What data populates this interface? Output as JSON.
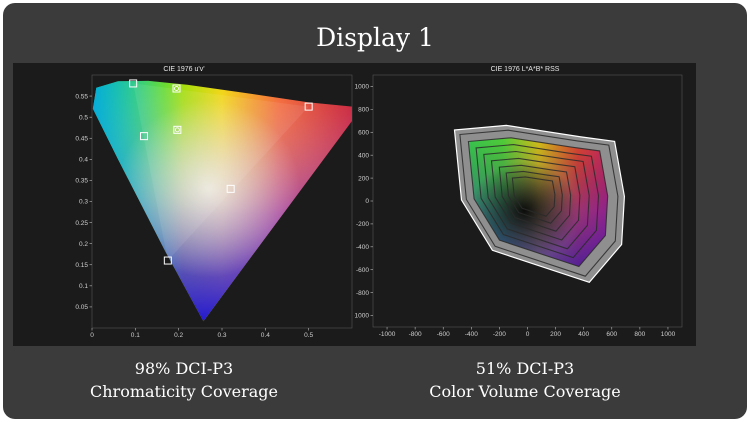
{
  "page": {
    "title": "Display 1"
  },
  "captions": {
    "left": {
      "line1": "98% DCI-P3",
      "line2": "Chromaticity Coverage"
    },
    "right": {
      "line1": "51% DCI-P3",
      "line2": "Color Volume Coverage"
    }
  },
  "chart_data": [
    {
      "type": "scatter",
      "title": "CIE 1976 u'v'",
      "xlabel": "",
      "ylabel": "",
      "xlim": [
        0,
        0.6
      ],
      "ylim": [
        0,
        0.6
      ],
      "x_ticks": [
        0,
        0.1,
        0.2,
        0.3,
        0.4,
        0.5
      ],
      "x_tick_labels": [
        "0",
        "0.1",
        "0.2",
        "0.3",
        "0.4",
        "0.5"
      ],
      "y_ticks": [
        0.05,
        0.1,
        0.15,
        0.2,
        0.25,
        0.3,
        0.35,
        0.4,
        0.45,
        0.5,
        0.55
      ],
      "y_tick_labels": [
        "0.05",
        "0.1",
        "0.15",
        "0.2",
        "0.25",
        "0.3",
        "0.35",
        "0.4",
        "0.45",
        "0.5",
        "0.55"
      ],
      "series": [
        {
          "marker": "square",
          "points": [
            [
              0.5,
              0.525
            ],
            [
              0.095,
              0.58
            ],
            [
              0.175,
              0.16
            ],
            [
              0.32,
              0.33
            ],
            [
              0.12,
              0.455
            ]
          ]
        },
        {
          "marker": "circled-square",
          "points": [
            [
              0.195,
              0.568
            ],
            [
              0.197,
              0.47
            ]
          ]
        }
      ]
    },
    {
      "type": "area",
      "title": "CIE 1976 L*A*B* RSS",
      "xlabel": "",
      "ylabel": "",
      "xlim": [
        -1100,
        1100
      ],
      "ylim": [
        -1100,
        1100
      ],
      "x_ticks": [
        -1000,
        -800,
        -600,
        -400,
        -200,
        0,
        200,
        400,
        600,
        800,
        1000
      ],
      "x_tick_labels": [
        "-1000",
        "-800",
        "-600",
        "-400",
        "-200",
        "0",
        "200",
        "400",
        "600",
        "800",
        "1000"
      ],
      "y_ticks": [
        -1000,
        -800,
        -600,
        -400,
        -200,
        0,
        200,
        400,
        600,
        800,
        1000
      ],
      "y_tick_labels": [
        "-1000",
        "-800",
        "-600",
        "-400",
        "-200",
        "0",
        "200",
        "400",
        "600",
        "800",
        "1000"
      ],
      "outline": [
        [
          -520,
          620
        ],
        [
          -150,
          660
        ],
        [
          380,
          560
        ],
        [
          620,
          520
        ],
        [
          690,
          40
        ],
        [
          670,
          -380
        ],
        [
          440,
          -710
        ],
        [
          -250,
          -430
        ],
        [
          -470,
          10
        ]
      ],
      "contour_scales": [
        0.93,
        0.82,
        0.72,
        0.62,
        0.52,
        0.42,
        0.33,
        0.25
      ]
    }
  ]
}
